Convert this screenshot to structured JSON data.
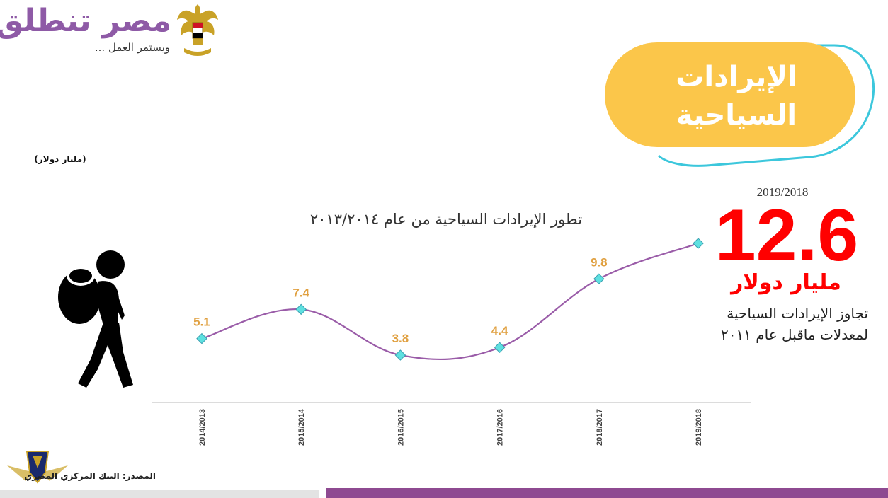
{
  "header": {
    "logo_text": "مصر تنطلق",
    "logo_sub": "ويستمر العمل ..."
  },
  "title_pill": {
    "line1": "الإيرادات",
    "line2": "السياحية",
    "fill_color": "#fbc64a",
    "outline_color": "#3cc7dc"
  },
  "unit_label": "(مليار دولار)",
  "highlight": {
    "period": "2019/2018",
    "value": "12.6",
    "unit": "مليار دولار",
    "note_line1": "تجاوز الإيرادات السياحية",
    "note_line2": "لمعدلات ماقبل عام ٢٠١١",
    "color": "#ff0000"
  },
  "source": "المصدر: البنك المركزي المصري",
  "colors": {
    "line": "#9a5ca8",
    "marker": "#5ee0e0",
    "data_label": "#e0a040",
    "accent_bar": "#8e4a91"
  },
  "chart_data": {
    "type": "line",
    "title": "تطور الإيرادات السياحية من عام ٢٠١٣/٢٠١٤",
    "xlabel": "",
    "ylabel": "",
    "categories": [
      "2014/2013",
      "2015/2014",
      "2016/2015",
      "2017/2016",
      "2018/2017",
      "2019/2018"
    ],
    "series": [
      {
        "values": [
          5.1,
          7.4,
          3.8,
          4.4,
          9.8,
          12.6
        ],
        "labels": [
          "5.1",
          "7.4",
          "3.8",
          "4.4",
          "9.8",
          ""
        ]
      }
    ],
    "ylim": [
      3.8,
      12.6
    ],
    "grid": false,
    "legend": "none"
  }
}
